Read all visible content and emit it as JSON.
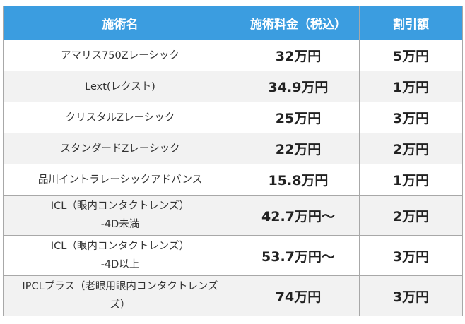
{
  "table": {
    "headers": [
      "施術名",
      "施術料金（税込）",
      "割引額"
    ],
    "rows": [
      {
        "name": [
          "アマリス750Zレーシック"
        ],
        "price": "32万円",
        "discount": "5万円"
      },
      {
        "name": [
          "Lext(レクスト)"
        ],
        "price": "34.9万円",
        "discount": "1万円"
      },
      {
        "name": [
          "クリスタルZレーシック"
        ],
        "price": "25万円",
        "discount": "3万円"
      },
      {
        "name": [
          "スタンダードZレーシック"
        ],
        "price": "22万円",
        "discount": "2万円"
      },
      {
        "name": [
          "品川イントラレーシックアドバンス"
        ],
        "price": "15.8万円",
        "discount": "1万円"
      },
      {
        "name": [
          "ICL（眼内コンタクトレンズ）",
          "-4D未満"
        ],
        "price": "42.7万円～",
        "discount": "2万円"
      },
      {
        "name": [
          "ICL（眼内コンタクトレンズ）",
          "-4D以上"
        ],
        "price": "53.7万円～",
        "discount": "3万円"
      },
      {
        "name": [
          "IPCLプラス（老眼用眼内コンタクトレンズ",
          "ズ）"
        ],
        "price": "74万円",
        "discount": "3万円"
      }
    ]
  }
}
